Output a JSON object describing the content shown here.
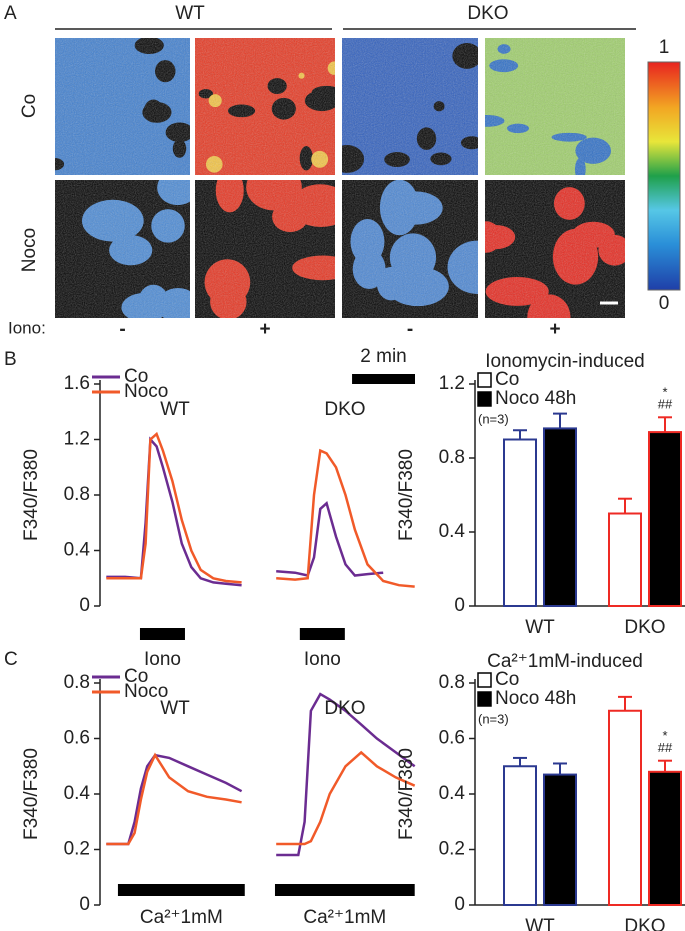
{
  "panel_a": {
    "label": "A",
    "groups": [
      "WT",
      "DKO"
    ],
    "rows": [
      "Co",
      "Noco"
    ],
    "iono_label": "Iono:",
    "iono": [
      "-",
      "+",
      "-",
      "+"
    ],
    "colorbar": {
      "lim": [
        0,
        1
      ],
      "ticks": [
        0,
        1
      ]
    }
  },
  "chart_data": [
    {
      "type": "line",
      "panel_label": "B",
      "ylabel": "F340/F380",
      "ylim": [
        0,
        1.6
      ],
      "yticks": [
        0,
        0.4,
        0.8,
        1.2,
        1.6
      ],
      "xlim": [
        0,
        10.2
      ],
      "x": [
        0.2,
        0.8,
        1.3,
        1.45,
        1.6,
        1.8,
        2.0,
        2.3,
        2.6,
        2.9,
        3.2,
        3.6,
        4.0,
        4.5,
        5.0,
        5.6,
        6.2,
        6.6,
        6.8,
        7.0,
        7.2,
        7.5,
        7.8,
        8.1,
        8.5,
        9.0,
        9.5,
        10.0
      ],
      "series": [
        {
          "name": "Co",
          "color": "#6b2c91",
          "values": [
            0.21,
            0.21,
            0.2,
            0.6,
            1.2,
            1.15,
            1.0,
            0.75,
            0.45,
            0.28,
            0.2,
            0.17,
            0.16,
            0.15,
            null,
            0.25,
            0.24,
            0.22,
            0.35,
            0.7,
            0.74,
            0.5,
            0.3,
            0.22,
            0.23,
            0.24,
            null,
            null
          ]
        },
        {
          "name": "Noco",
          "color": "#f15a29",
          "values": [
            0.2,
            0.2,
            0.2,
            0.45,
            1.2,
            1.24,
            1.12,
            0.9,
            0.62,
            0.4,
            0.26,
            0.2,
            0.18,
            0.17,
            null,
            0.2,
            0.19,
            0.2,
            0.8,
            1.12,
            1.1,
            1.0,
            0.8,
            0.55,
            0.3,
            0.18,
            0.15,
            0.14
          ]
        }
      ],
      "groups": [
        {
          "title": "WT",
          "stimulus": "Iono",
          "stimulus_x": [
            1.27,
            2.7
          ]
        },
        {
          "title": "DKO",
          "stimulus": "Iono",
          "stimulus_x": [
            6.35,
            7.78
          ]
        }
      ],
      "scale_bar": {
        "label": "2 min",
        "length": 2
      }
    },
    {
      "type": "bar",
      "title": "Ionomycin-induced",
      "ylabel": "F340/F380",
      "ylim": [
        0,
        1.2
      ],
      "yticks": [
        0,
        0.4,
        0.8,
        1.2
      ],
      "categories": [
        "WT",
        "DKO"
      ],
      "category_colors": [
        "#2b3990",
        "#ee2a24"
      ],
      "series": [
        {
          "name": "Co",
          "fill": "#ffffff",
          "values": [
            0.9,
            0.5
          ],
          "errors": [
            0.05,
            0.08
          ]
        },
        {
          "name": "Noco 48h",
          "fill": "#000000",
          "values": [
            0.96,
            0.94
          ],
          "errors": [
            0.08,
            0.08
          ]
        }
      ],
      "n_note": "(n=3)",
      "significance": [
        "*",
        "##"
      ]
    },
    {
      "type": "line",
      "panel_label": "C",
      "ylabel": "F340/F380",
      "ylim": [
        0,
        0.8
      ],
      "yticks": [
        0,
        0.2,
        0.4,
        0.6,
        0.8
      ],
      "xlim": [
        0,
        10.2
      ],
      "x": [
        0.2,
        0.9,
        1.1,
        1.3,
        1.5,
        1.75,
        2.2,
        2.8,
        3.4,
        4.0,
        4.5,
        5.0,
        5.6,
        6.3,
        6.5,
        6.7,
        7.0,
        7.3,
        7.8,
        8.3,
        8.8,
        9.4,
        10.0
      ],
      "series": [
        {
          "name": "Co",
          "color": "#6b2c91",
          "values": [
            0.22,
            0.22,
            0.3,
            0.42,
            0.5,
            0.54,
            0.53,
            0.5,
            0.47,
            0.44,
            0.41,
            null,
            0.18,
            0.18,
            0.3,
            0.7,
            0.76,
            0.74,
            0.7,
            0.65,
            0.6,
            0.55,
            0.5
          ]
        },
        {
          "name": "Noco",
          "color": "#f15a29",
          "values": [
            0.22,
            0.22,
            0.26,
            0.38,
            0.48,
            0.54,
            0.46,
            0.41,
            0.39,
            0.38,
            0.37,
            null,
            0.22,
            0.22,
            0.22,
            0.23,
            0.3,
            0.4,
            0.5,
            0.55,
            0.5,
            0.46,
            0.43
          ]
        }
      ],
      "groups": [
        {
          "title": "WT",
          "stimulus": "Ca²⁺1mM",
          "stimulus_x": [
            0.57,
            4.6
          ]
        },
        {
          "title": "DKO",
          "stimulus": "Ca²⁺1mM",
          "stimulus_x": [
            5.56,
            10.0
          ]
        }
      ]
    },
    {
      "type": "bar",
      "title": "Ca²⁺1mM-induced",
      "ylabel": "F340/F380",
      "ylim": [
        0,
        0.8
      ],
      "yticks": [
        0,
        0.2,
        0.4,
        0.6,
        0.8
      ],
      "categories": [
        "WT",
        "DKO"
      ],
      "category_colors": [
        "#2b3990",
        "#ee2a24"
      ],
      "series": [
        {
          "name": "Co",
          "fill": "#ffffff",
          "values": [
            0.5,
            0.7
          ],
          "errors": [
            0.03,
            0.05
          ]
        },
        {
          "name": "Noco 48h",
          "fill": "#000000",
          "values": [
            0.47,
            0.48
          ],
          "errors": [
            0.04,
            0.04
          ]
        }
      ],
      "n_note": "(n=3)",
      "significance": [
        "*",
        "##"
      ]
    }
  ]
}
